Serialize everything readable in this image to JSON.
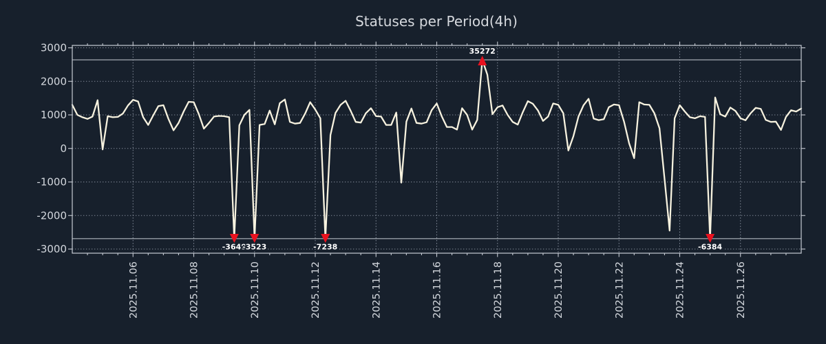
{
  "title": "Statuses per Period(4h)",
  "colors": {
    "background": "#17202c",
    "frame": "#c7ccd4",
    "grid": "#9aa2b0",
    "line": "#f7f2df",
    "marker": "#e9121f",
    "text": "#d3d7dd",
    "outlier_label": "#ffffff"
  },
  "chart_data": {
    "type": "line",
    "title": "Statuses per Period(4h)",
    "period_hours": 4,
    "xlabel": "",
    "ylabel": "",
    "ylim": [
      -3000,
      3000
    ],
    "grid": true,
    "legend": false,
    "overflow_clip": [
      2640,
      -2690
    ],
    "y_ticks": [
      {
        "v": 3000,
        "label": "3000"
      },
      {
        "v": 2000,
        "label": "2000"
      },
      {
        "v": 1000,
        "label": "1000"
      },
      {
        "v": 0,
        "label": "0"
      },
      {
        "v": -1000,
        "label": "-1000"
      },
      {
        "v": -2000,
        "label": "-2000"
      },
      {
        "v": -3000,
        "label": "-3000"
      }
    ],
    "x_ticks": [
      {
        "i": 12,
        "label": "2025.11.06"
      },
      {
        "i": 24,
        "label": "2025.11.08"
      },
      {
        "i": 36,
        "label": "2025.11.10"
      },
      {
        "i": 48,
        "label": "2025.11.12"
      },
      {
        "i": 60,
        "label": "2025.11.14"
      },
      {
        "i": 72,
        "label": "2025.11.16"
      },
      {
        "i": 84,
        "label": "2025.11.18"
      },
      {
        "i": 96,
        "label": "2025.11.20"
      },
      {
        "i": 108,
        "label": "2025.11.22"
      },
      {
        "i": 120,
        "label": "2025.11.24"
      },
      {
        "i": 132,
        "label": "2025.11.26"
      }
    ],
    "values": [
      1300,
      1000,
      930,
      880,
      950,
      1440,
      -30,
      960,
      930,
      940,
      1040,
      1280,
      1450,
      1400,
      930,
      700,
      990,
      1260,
      1290,
      880,
      540,
      760,
      1100,
      1390,
      1380,
      1020,
      590,
      760,
      950,
      970,
      960,
      930,
      -3649,
      690,
      1000,
      1150,
      -3523,
      700,
      730,
      1130,
      720,
      1350,
      1460,
      790,
      740,
      760,
      1040,
      1380,
      1160,
      900,
      -7238,
      400,
      1060,
      1300,
      1420,
      1120,
      790,
      770,
      1050,
      1200,
      960,
      950,
      700,
      700,
      1070,
      -1020,
      800,
      1190,
      760,
      740,
      780,
      1140,
      1340,
      950,
      640,
      640,
      560,
      1200,
      1000,
      560,
      850,
      35272,
      2200,
      1020,
      1230,
      1280,
      1000,
      790,
      710,
      1080,
      1410,
      1330,
      1130,
      820,
      950,
      1340,
      1300,
      1050,
      -60,
      370,
      950,
      1290,
      1480,
      890,
      845,
      870,
      1230,
      1310,
      1290,
      800,
      150,
      -290,
      1380,
      1310,
      1300,
      1050,
      600,
      -900,
      -2450,
      900,
      1290,
      1100,
      930,
      900,
      960,
      940,
      -6384,
      1520,
      1020,
      950,
      1220,
      1120,
      900,
      840,
      1050,
      1210,
      1180,
      850,
      790,
      800,
      550,
      940,
      1140,
      1100,
      1190
    ],
    "outliers": [
      {
        "i": 32,
        "label": "-3649"
      },
      {
        "i": 36,
        "label": "-3523"
      },
      {
        "i": 50,
        "label": "-7238"
      },
      {
        "i": 81,
        "label": "35272"
      },
      {
        "i": 126,
        "label": "-6384"
      }
    ]
  }
}
